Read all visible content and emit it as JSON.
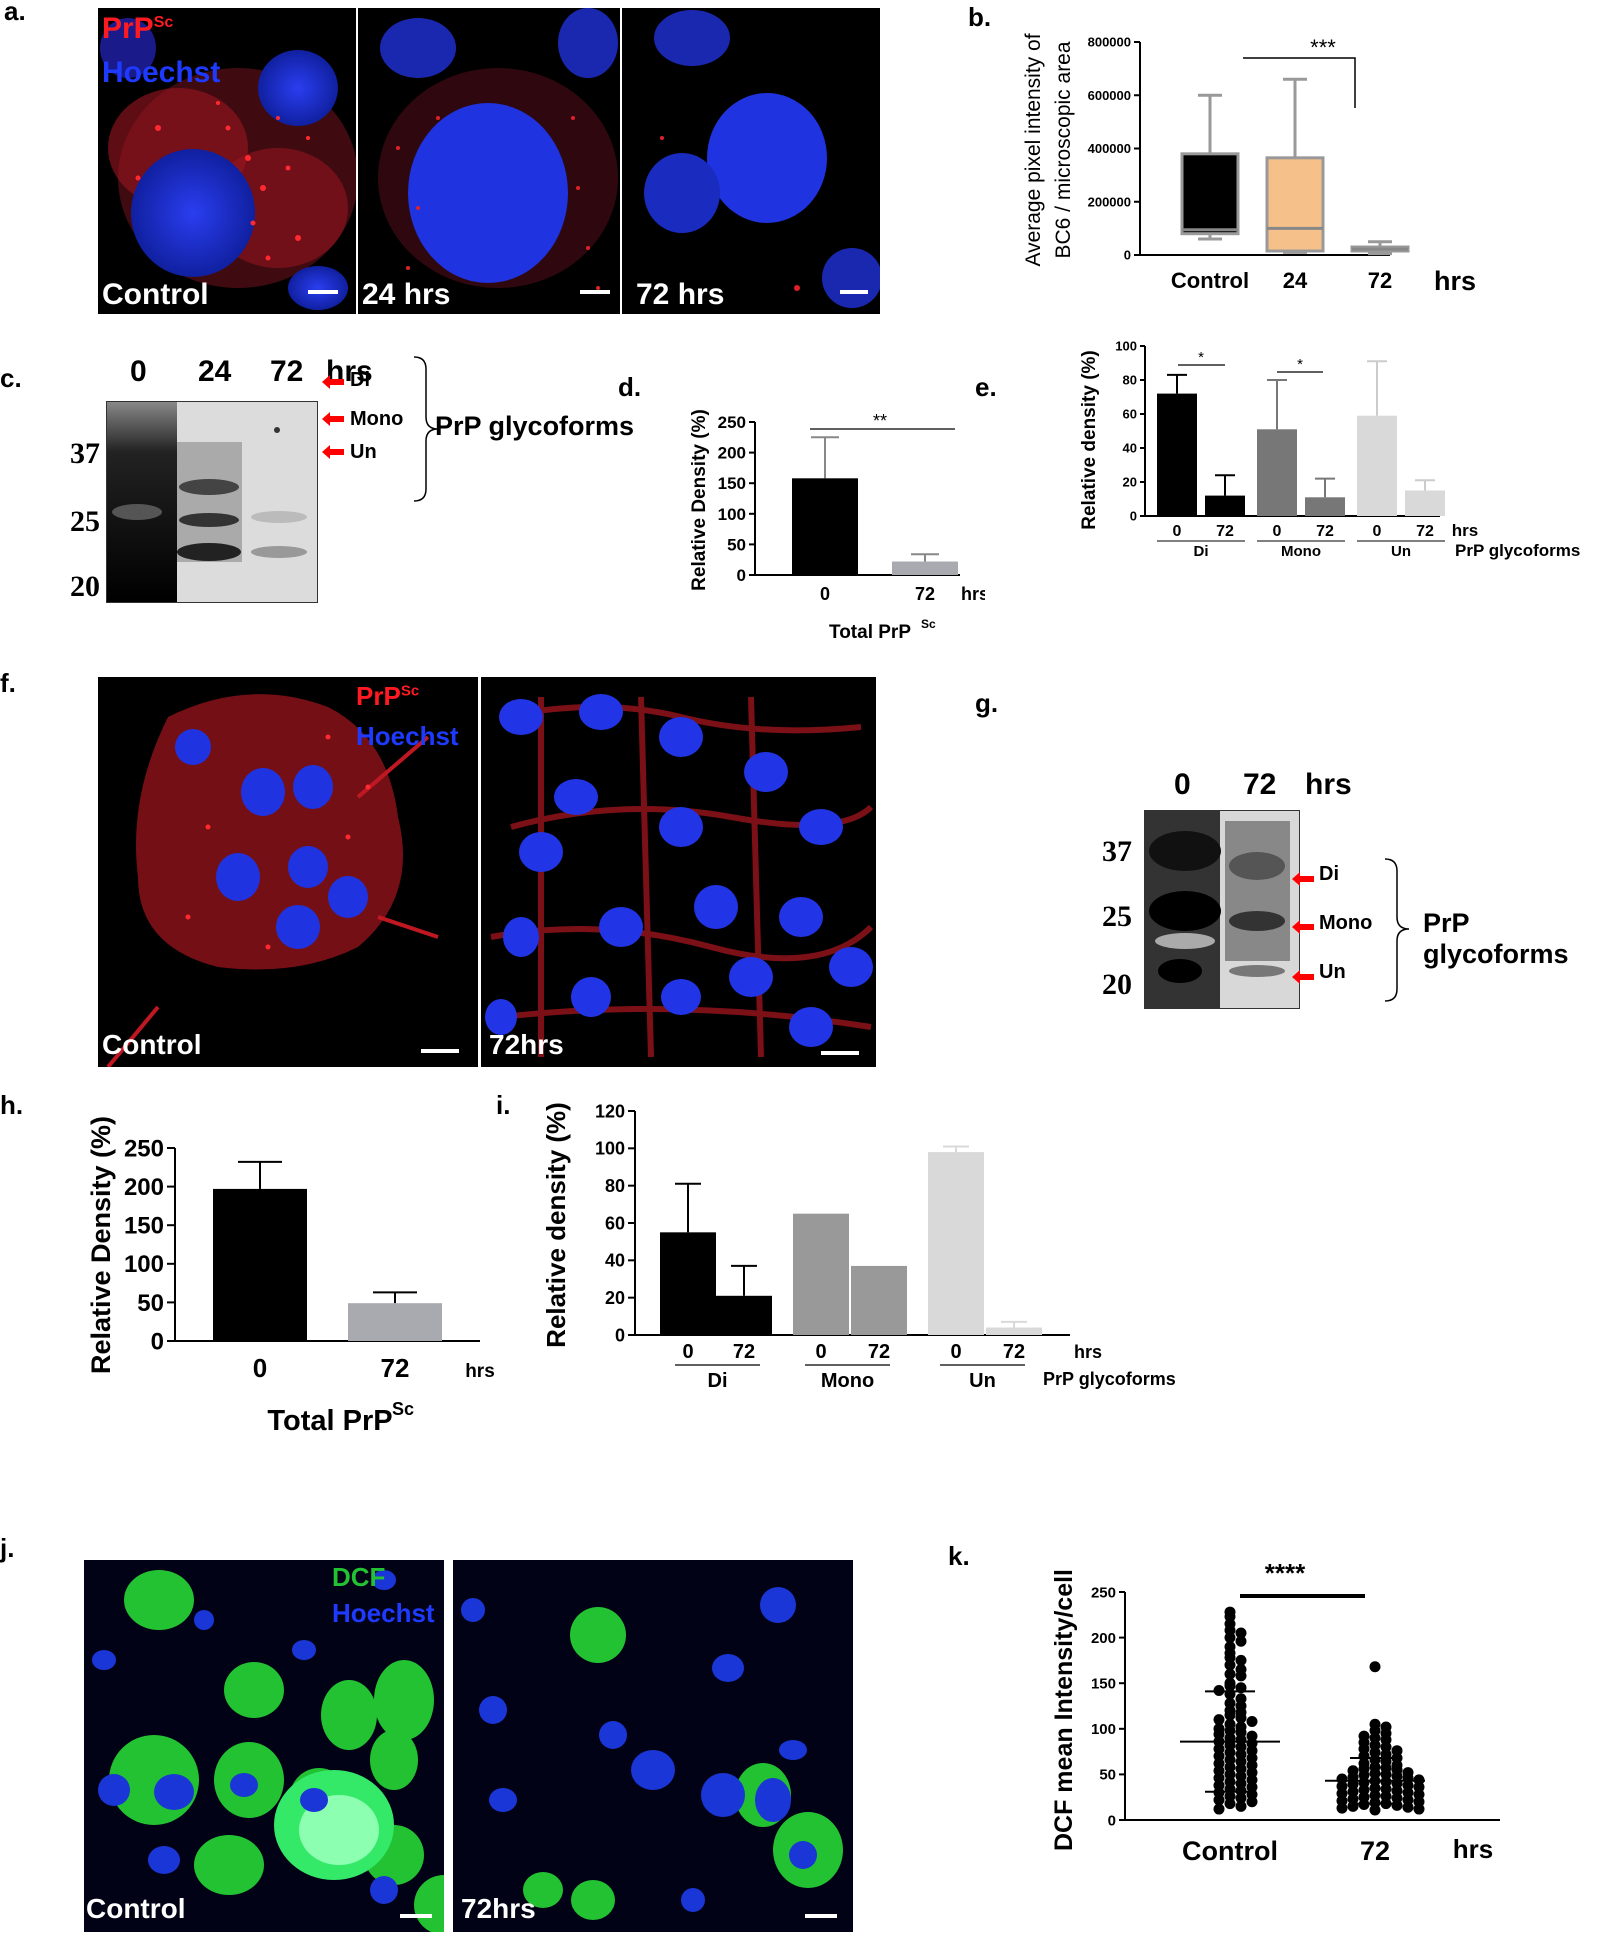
{
  "panel_labels": {
    "a": "a.",
    "b": "b.",
    "c": "c.",
    "d": "d.",
    "e": "e.",
    "f": "f.",
    "g": "g.",
    "h": "h.",
    "i": "i.",
    "j": "j.",
    "k": "k."
  },
  "panel_a": {
    "legend_prp": "PrP",
    "legend_prp_sup": "Sc",
    "legend_hoechst": "Hoechst",
    "images": [
      "Control",
      "24 hrs",
      "72 hrs"
    ]
  },
  "panel_f": {
    "legend_prp": "PrP",
    "legend_prp_sup": "Sc",
    "legend_hoechst": "Hoechst",
    "images": [
      "Control",
      "72hrs"
    ]
  },
  "panel_j": {
    "legend_dcf": "DCF",
    "legend_hoechst": "Hoechst",
    "images": [
      "Control",
      "72hrs"
    ]
  },
  "panel_c": {
    "lanes": [
      "0",
      "24",
      "72"
    ],
    "unit": "hrs",
    "mw": [
      "37",
      "25",
      "20"
    ],
    "bands": [
      "Di",
      "Mono",
      "Un"
    ],
    "glyco_label": "PrP glycoforms"
  },
  "panel_g": {
    "lanes": [
      "0",
      "72"
    ],
    "unit": "hrs",
    "mw": [
      "37",
      "25",
      "20"
    ],
    "bands": [
      "Di",
      "Mono",
      "Un"
    ],
    "glyco_label": "PrP glycoforms"
  },
  "colors": {
    "black": "#000000",
    "orange": "#f5c089",
    "gray": "#a9a9b0",
    "mid_gray": "#777777",
    "light_gray": "#d9d9d9",
    "error": "#888888",
    "blue_nuc": "#1f2fd6",
    "red_stain": "#e0131c",
    "green_dcf": "#19c82b",
    "arrow_red": "#ff0000"
  },
  "chart_data": [
    {
      "id": "b",
      "type": "box",
      "ylabel_lines": [
        "Average pixel intensity of",
        "BC6 / microscopic area"
      ],
      "categories": [
        "Control",
        "24",
        "72"
      ],
      "unit_label": "hrs",
      "ylim": [
        0,
        800000
      ],
      "yticks": [
        "0",
        "200000",
        "400000",
        "600000",
        "800000"
      ],
      "boxes": [
        {
          "min": 60000,
          "q1": 80000,
          "median": 95000,
          "q3": 380000,
          "max": 600000,
          "color": "#000000"
        },
        {
          "min": 10000,
          "q1": 15000,
          "median": 100000,
          "q3": 365000,
          "max": 660000,
          "color": "#f5c089"
        },
        {
          "min": 5000,
          "q1": 15000,
          "median": 22000,
          "q3": 30000,
          "max": 50000,
          "color": "#bfbfbf"
        }
      ],
      "significance": "***"
    },
    {
      "id": "d",
      "type": "bar",
      "ylabel": "Relative Density (%)",
      "xlabel": "Total PrP",
      "xlabel_sup": "Sc",
      "categories": [
        "0",
        "72"
      ],
      "unit_label": "hrs",
      "values": [
        158,
        22
      ],
      "errors": [
        67,
        12
      ],
      "ylim": [
        0,
        250
      ],
      "yticks": [
        "0",
        "50",
        "100",
        "150",
        "200",
        "250"
      ],
      "significance": "**"
    },
    {
      "id": "e",
      "type": "bar",
      "ylabel": "Relative density (%)",
      "groups": [
        "Di",
        "Mono",
        "Un"
      ],
      "categories": [
        "0",
        "72",
        "0",
        "72",
        "0",
        "72"
      ],
      "unit_label": "hrs",
      "group_label": "PrP glycoforms",
      "values": [
        72,
        12,
        51,
        11,
        59,
        15
      ],
      "errors": [
        11,
        12,
        29,
        11,
        32,
        6
      ],
      "ylim": [
        0,
        100
      ],
      "yticks": [
        "0",
        "20",
        "40",
        "60",
        "80",
        "100"
      ],
      "significance": [
        "*",
        "*"
      ]
    },
    {
      "id": "h",
      "type": "bar",
      "ylabel": "Relative Density (%)",
      "xlabel": "Total PrP",
      "xlabel_sup": "Sc",
      "categories": [
        "0",
        "72"
      ],
      "unit_label": "hrs",
      "values": [
        197,
        49
      ],
      "errors": [
        35,
        14
      ],
      "ylim": [
        0,
        250
      ],
      "yticks": [
        "0",
        "50",
        "100",
        "150",
        "200",
        "250"
      ]
    },
    {
      "id": "i",
      "type": "bar",
      "ylabel": "Relative density (%)",
      "groups": [
        "Di",
        "Mono",
        "Un"
      ],
      "categories": [
        "0",
        "72",
        "0",
        "72",
        "0",
        "72"
      ],
      "unit_label": "hrs",
      "group_label": "PrP glycoforms",
      "values": [
        55,
        21,
        65,
        37,
        98,
        4
      ],
      "errors": [
        26,
        16,
        0,
        0,
        3,
        3
      ],
      "ylim": [
        0,
        120
      ],
      "yticks": [
        "0",
        "20",
        "40",
        "60",
        "80",
        "100",
        "120"
      ]
    },
    {
      "id": "k",
      "type": "scatter",
      "ylabel": "DCF  mean Intensity/cell",
      "categories": [
        "Control",
        "72"
      ],
      "unit_label": "hrs",
      "ylim": [
        0,
        250
      ],
      "yticks": [
        "0",
        "50",
        "100",
        "150",
        "200",
        "250"
      ],
      "mean": [
        86,
        43
      ],
      "sd": [
        55,
        25
      ],
      "significance": "****",
      "points": [
        [
          228,
          223,
          215,
          208,
          205,
          200,
          196,
          190,
          183,
          178,
          175,
          170,
          165,
          160,
          158,
          150,
          147,
          145,
          142,
          138,
          133,
          128,
          125,
          120,
          118,
          115,
          112,
          110,
          108,
          105,
          102,
          100,
          98,
          96,
          94,
          92,
          90,
          88,
          86,
          84,
          82,
          80,
          78,
          76,
          74,
          72,
          70,
          68,
          66,
          64,
          62,
          60,
          58,
          56,
          54,
          52,
          50,
          48,
          46,
          44,
          42,
          40,
          38,
          36,
          34,
          32,
          30,
          28,
          26,
          24,
          22,
          20,
          18,
          15,
          12
        ],
        [
          168,
          105,
          102,
          98,
          95,
          92,
          90,
          88,
          85,
          82,
          80,
          78,
          76,
          74,
          72,
          70,
          68,
          66,
          64,
          62,
          60,
          58,
          57,
          56,
          55,
          54,
          52,
          51,
          50,
          49,
          48,
          47,
          46,
          45,
          44,
          43,
          42,
          41,
          40,
          39,
          38,
          37,
          36,
          35,
          34,
          33,
          32,
          31,
          30,
          29,
          28,
          27,
          26,
          25,
          24,
          23,
          22,
          21,
          20,
          19,
          18,
          17,
          16,
          15,
          14,
          13,
          12,
          11
        ]
      ]
    }
  ]
}
